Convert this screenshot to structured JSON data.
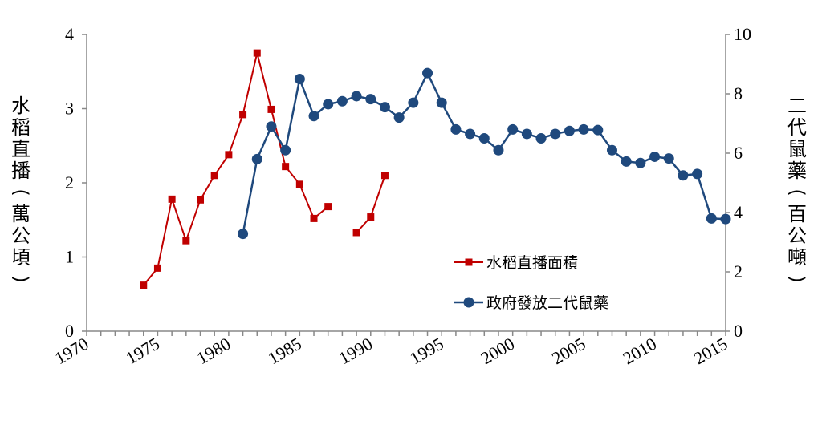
{
  "chart_data": {
    "type": "line",
    "xlim": [
      1970,
      2015
    ],
    "x_ticks": [
      1970,
      1975,
      1980,
      1985,
      1990,
      1995,
      2000,
      2005,
      2010,
      2015
    ],
    "x_tick_labels": [
      "1970",
      "1975",
      "1980",
      "1985",
      "1990",
      "1995",
      "2000",
      "2005",
      "2010",
      "2015"
    ],
    "y_left": {
      "label": "水稻直播(萬公頃)",
      "lim": [
        0,
        4
      ],
      "ticks": [
        0,
        1,
        2,
        3,
        4
      ],
      "tick_labels": [
        "0",
        "1",
        "2",
        "3",
        "4"
      ]
    },
    "y_right": {
      "label": "二代鼠藥(百公噸)",
      "lim": [
        0,
        10
      ],
      "ticks": [
        0,
        2,
        4,
        6,
        8,
        10
      ],
      "tick_labels": [
        "0",
        "2",
        "4",
        "6",
        "8",
        "10"
      ]
    },
    "grid": false,
    "legend_position": "lower-right",
    "series": [
      {
        "name": "水稻直播面積",
        "axis": "left",
        "color": "#c00000",
        "marker": "square",
        "segments": [
          [
            [
              1974,
              0.62
            ],
            [
              1975,
              0.85
            ],
            [
              1976,
              1.78
            ],
            [
              1977,
              1.22
            ],
            [
              1978,
              1.77
            ],
            [
              1979,
              2.1
            ],
            [
              1980,
              2.38
            ],
            [
              1981,
              2.92
            ],
            [
              1982,
              3.75
            ],
            [
              1983,
              2.99
            ],
            [
              1984,
              2.22
            ],
            [
              1985,
              1.98
            ],
            [
              1986,
              1.52
            ],
            [
              1987,
              1.68
            ]
          ],
          [
            [
              1989,
              1.33
            ],
            [
              1990,
              1.54
            ],
            [
              1991,
              2.1
            ]
          ]
        ]
      },
      {
        "name": "政府發放二代鼠藥",
        "axis": "right",
        "color": "#1f497d",
        "marker": "circle",
        "segments": [
          [
            [
              1981,
              3.28
            ],
            [
              1982,
              5.8
            ],
            [
              1983,
              6.9
            ],
            [
              1984,
              6.1
            ],
            [
              1985,
              8.5
            ],
            [
              1986,
              7.25
            ],
            [
              1987,
              7.65
            ],
            [
              1988,
              7.75
            ],
            [
              1989,
              7.92
            ],
            [
              1990,
              7.82
            ],
            [
              1991,
              7.55
            ],
            [
              1992,
              7.2
            ],
            [
              1993,
              7.7
            ],
            [
              1994,
              8.7
            ],
            [
              1995,
              7.7
            ],
            [
              1996,
              6.8
            ],
            [
              1997,
              6.65
            ],
            [
              1998,
              6.5
            ],
            [
              1999,
              6.1
            ],
            [
              2000,
              6.8
            ],
            [
              2001,
              6.65
            ],
            [
              2002,
              6.5
            ],
            [
              2003,
              6.65
            ],
            [
              2004,
              6.75
            ],
            [
              2005,
              6.8
            ],
            [
              2006,
              6.78
            ],
            [
              2007,
              6.1
            ],
            [
              2008,
              5.72
            ],
            [
              2009,
              5.67
            ],
            [
              2010,
              5.88
            ],
            [
              2011,
              5.82
            ],
            [
              2012,
              5.25
            ],
            [
              2013,
              5.3
            ],
            [
              2014,
              3.8
            ],
            [
              2015,
              3.78
            ]
          ]
        ]
      }
    ]
  }
}
